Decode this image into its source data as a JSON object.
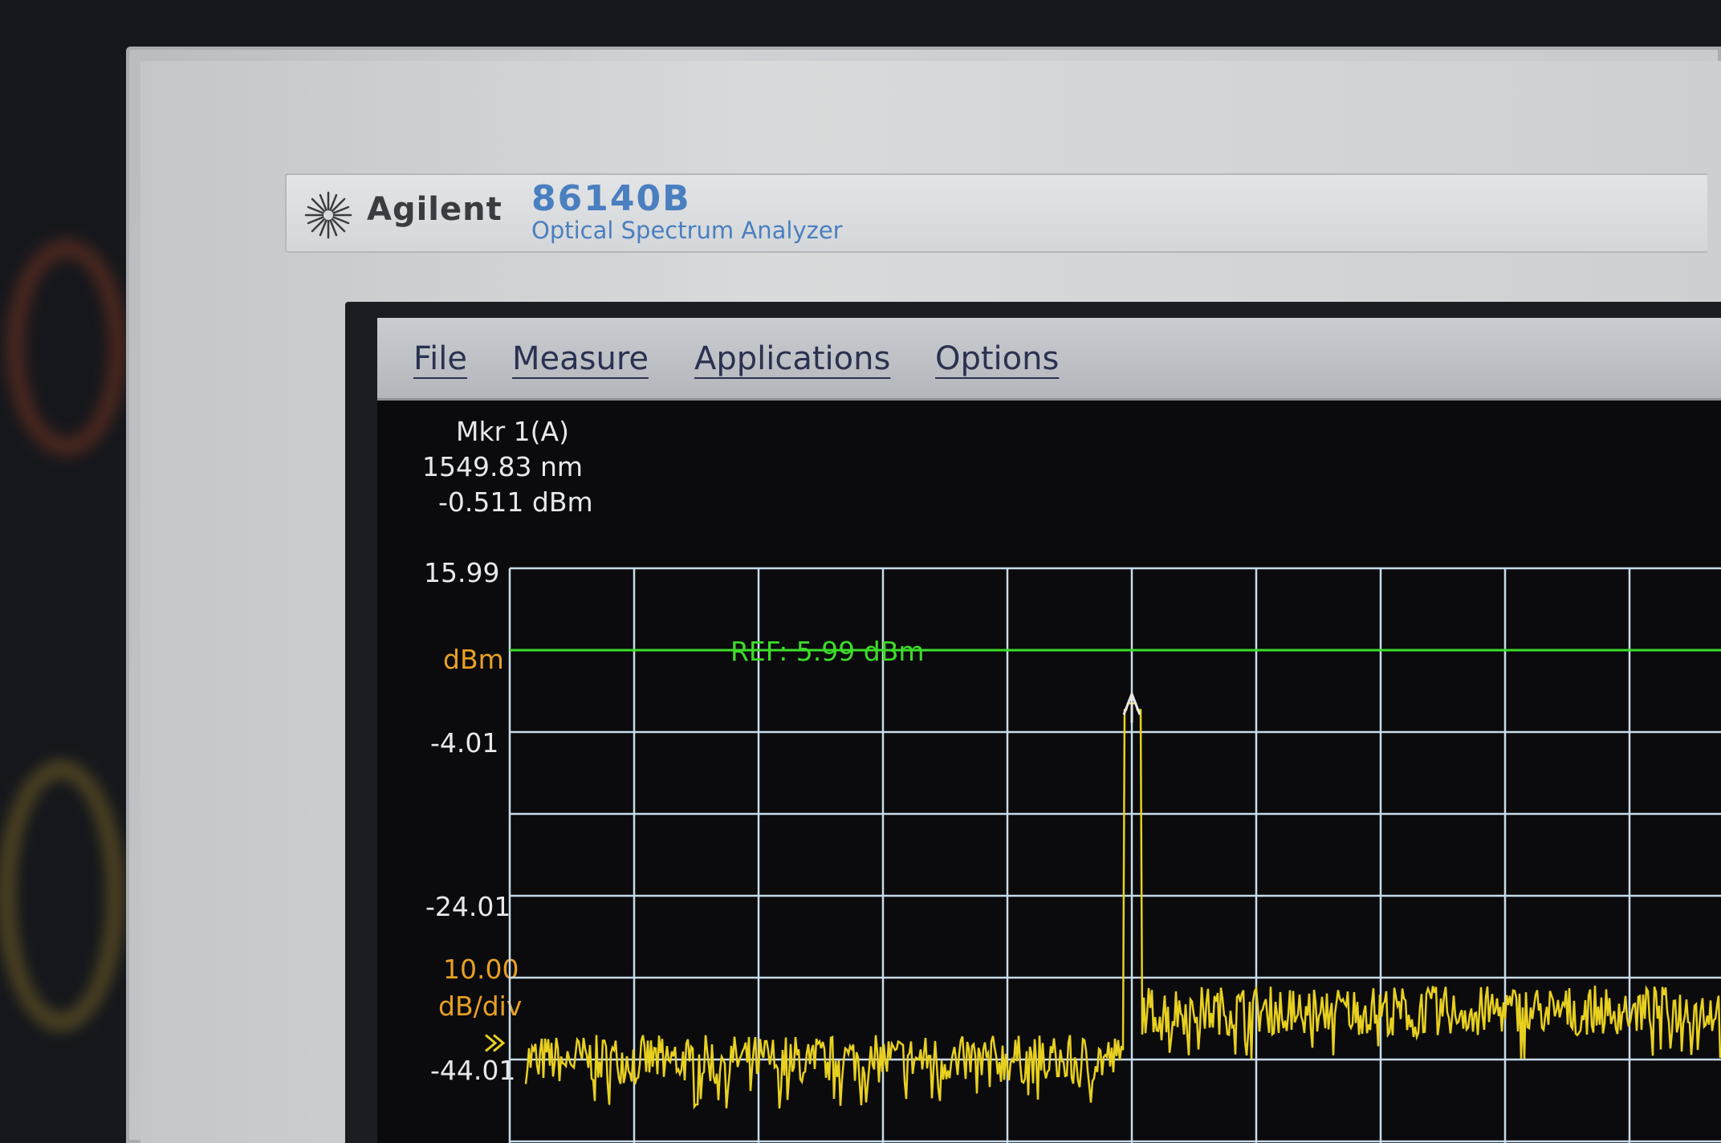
{
  "device": {
    "brand": "Agilent",
    "model": "86140B",
    "subtitle": "Optical Spectrum Analyzer",
    "logo_icon": "agilent-spark-logo"
  },
  "menu": {
    "items": [
      {
        "label": "File"
      },
      {
        "label": "Measure"
      },
      {
        "label": "Applications"
      },
      {
        "label": "Options"
      }
    ]
  },
  "marker": {
    "title": "Mkr 1(A)",
    "wavelength": "1549.83 nm",
    "level": "-0.511 dBm"
  },
  "axis": {
    "top": "15.99",
    "unit": "dBm",
    "label_1": "-4.01",
    "label_2": "-24.01",
    "scale_value": "10.00",
    "scale_unit": "dB/div",
    "label_3": "-44.01"
  },
  "reference": {
    "label": "REF: 5.99 dBm"
  },
  "colors": {
    "trace": "#e8d020",
    "reference_line": "#3ddc2a",
    "grid": "#c8dcea",
    "axis_text": "#e6e8ea",
    "unit_text": "#e8a024",
    "menu_text": "#2b3150",
    "brand_blue": "#4a7fc0"
  },
  "chart_data": {
    "type": "line",
    "ylabel": "dBm",
    "y_top": 15.99,
    "y_per_div": 10,
    "reference_level": 5.99,
    "grid": true,
    "series": [
      {
        "peak_wavelength_nm": 1549.83,
        "peak_level_dbm": -0.511,
        "noise_floor_left_dbm": -41,
        "noise_floor_right_dbm": -37
      }
    ]
  }
}
